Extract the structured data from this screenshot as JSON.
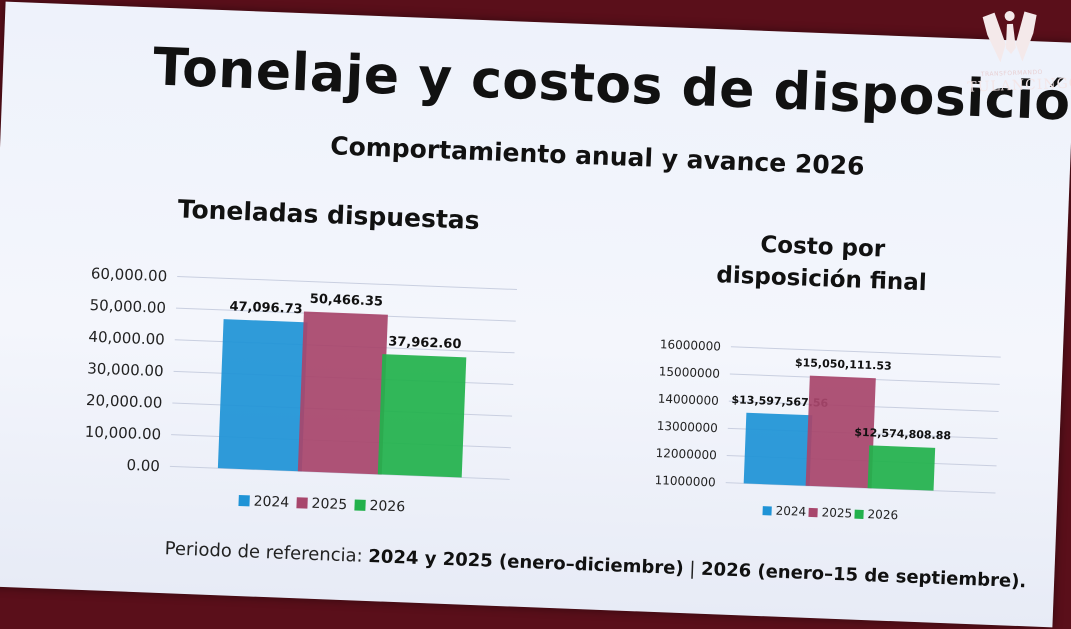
{
  "slide": {
    "title": "Tonelaje y costos de disposición",
    "subtitle": "Comportamiento anual y avance 2026",
    "footnote_prefix": "Periodo de referencia: ",
    "footnote_years": "2024 y 2025 (enero–diciembre)",
    "footnote_sep": " | ",
    "footnote_current": "2026 (enero–15 de septiembre)."
  },
  "logo": {
    "small_text": "TRANSFORMANDO",
    "name": "TULANCINGO"
  },
  "colors": {
    "2024": "#1f93d6",
    "2025": "#a8466c",
    "2026": "#22b14c",
    "grid": "#c9cfe0"
  },
  "chart_data": [
    {
      "type": "bar",
      "title": "Toneladas dispuestas",
      "categories": [
        "2024",
        "2025",
        "2026"
      ],
      "values": [
        47096.73,
        50466.35,
        37962.6
      ],
      "value_labels": [
        "47,096.73",
        "50,466.35",
        "37,962.60"
      ],
      "ylim": [
        0,
        60000
      ],
      "yticks": [
        "0.00",
        "10,000.00",
        "20,000.00",
        "30,000.00",
        "40,000.00",
        "50,000.00",
        "60,000.00"
      ],
      "legend": [
        "2024",
        "2025",
        "2026"
      ],
      "legend_position": "bottom",
      "grid": true
    },
    {
      "type": "bar",
      "title": "Costo por disposición final",
      "categories": [
        "2024",
        "2025",
        "2026"
      ],
      "values": [
        13597567.56,
        15050111.53,
        12574808.88
      ],
      "value_labels": [
        "$13,597,567.56",
        "$15,050,111.53",
        "$12,574,808.88"
      ],
      "ylim": [
        11000000,
        16000000
      ],
      "yticks": [
        "11000000",
        "12000000",
        "13000000",
        "14000000",
        "15000000",
        "16000000"
      ],
      "legend": [
        "2024",
        "2025",
        "2026"
      ],
      "legend_position": "bottom",
      "grid": true
    }
  ]
}
